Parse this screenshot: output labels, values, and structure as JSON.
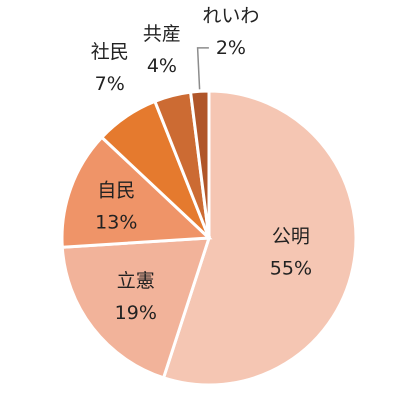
{
  "chart_data": {
    "type": "pie",
    "title": "",
    "start_angle_deg": 0,
    "direction": "clockwise",
    "legend": "none",
    "slices": [
      {
        "label": "公明",
        "value": 55,
        "value_label": "55%",
        "color": "#F5C6B3"
      },
      {
        "label": "立憲",
        "value": 19,
        "value_label": "19%",
        "color": "#F2B39A"
      },
      {
        "label": "自民",
        "value": 13,
        "value_label": "13%",
        "color": "#EF9468"
      },
      {
        "label": "社民",
        "value": 7,
        "value_label": "7%",
        "color": "#E57A2E"
      },
      {
        "label": "共産",
        "value": 4,
        "value_label": "4%",
        "color": "#CC6B33"
      },
      {
        "label": "れいわ",
        "value": 2,
        "value_label": "2%",
        "color": "#B0562A"
      }
    ]
  }
}
